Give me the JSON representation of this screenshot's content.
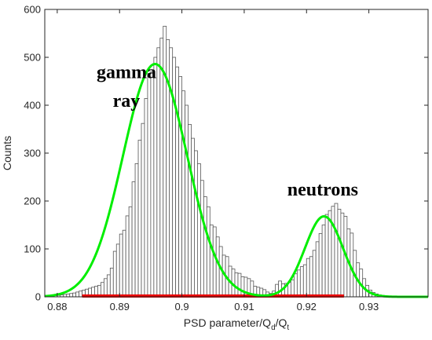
{
  "chart_data": {
    "type": "bar",
    "title": "",
    "xlabel": {
      "base": "PSD parameter/Q",
      "sub1": "d",
      "mid": "/Q",
      "sub2": "t"
    },
    "ylabel": "Counts",
    "xlim": [
      0.878,
      0.9395
    ],
    "ylim": [
      0,
      600
    ],
    "xticks": [
      0.88,
      0.89,
      0.9,
      0.91,
      0.92,
      0.93
    ],
    "xtick_labels": [
      "0.88",
      "0.89",
      "0.9",
      "0.91",
      "0.92",
      "0.93"
    ],
    "yticks": [
      0,
      100,
      200,
      300,
      400,
      500,
      600
    ],
    "ytick_labels": [
      "0",
      "100",
      "200",
      "300",
      "400",
      "500",
      "600"
    ],
    "grid": false,
    "histogram": {
      "bin_start": 0.8795,
      "bin_width": 0.0005,
      "counts": [
        3,
        3,
        4,
        5,
        6,
        7,
        8,
        10,
        12,
        14,
        16,
        18,
        20,
        22,
        24,
        30,
        38,
        46,
        60,
        95,
        110,
        131,
        139,
        169,
        188,
        240,
        278,
        327,
        362,
        414,
        466,
        470,
        500,
        520,
        540,
        565,
        537,
        520,
        500,
        480,
        460,
        430,
        400,
        360,
        331,
        305,
        278,
        243,
        209,
        188,
        150,
        146,
        125,
        105,
        87,
        84,
        64,
        58,
        50,
        49,
        42,
        41,
        38,
        33,
        22,
        20,
        18,
        15,
        10,
        7,
        12,
        26,
        33,
        27,
        28,
        30,
        35,
        48,
        56,
        63,
        67,
        80,
        84,
        97,
        115,
        132,
        150,
        172,
        180,
        189,
        195,
        183,
        175,
        168,
        142,
        133,
        97,
        71,
        58,
        38,
        24,
        14,
        9,
        6,
        4,
        3,
        2,
        1,
        1,
        1,
        1,
        1,
        0,
        0,
        0,
        0,
        0,
        0,
        0
      ],
      "edge_color": "#555555",
      "fill": "#ffffff"
    },
    "fits": [
      {
        "type": "gaussian",
        "amplitude": 486,
        "mean": 0.8957,
        "sigma": 0.00515,
        "color": "#00ee00"
      },
      {
        "type": "gaussian",
        "amplitude": 168,
        "mean": 0.9228,
        "sigma": 0.00305,
        "color": "#00ee00"
      }
    ],
    "baseline": {
      "color": "#ee0000",
      "range": [
        0.884,
        0.926
      ]
    },
    "annotations": [
      {
        "text": "gamma",
        "x": 0.8911,
        "y": 470
      },
      {
        "text": "ray",
        "x": 0.8911,
        "y": 410
      },
      {
        "text": "neutrons",
        "x": 0.9226,
        "y": 225
      }
    ]
  }
}
